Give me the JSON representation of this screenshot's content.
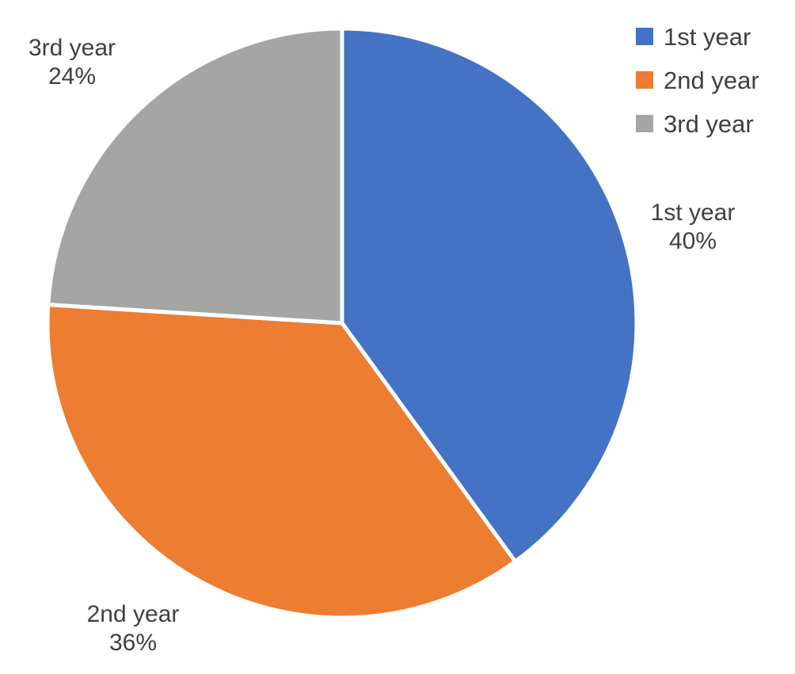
{
  "chart_data": {
    "type": "pie",
    "categories": [
      "1st year",
      "2nd year",
      "3rd year"
    ],
    "values": [
      40,
      36,
      24
    ],
    "value_labels": [
      "40%",
      "36%",
      "24%"
    ],
    "colors": [
      "#4472C4",
      "#ED7D31",
      "#A5A5A5"
    ],
    "start": "12 o'clock",
    "direction": "clockwise",
    "legend": {
      "position": "top-right",
      "items": [
        "1st year",
        "2nd year",
        "3rd year"
      ]
    },
    "title": ""
  }
}
